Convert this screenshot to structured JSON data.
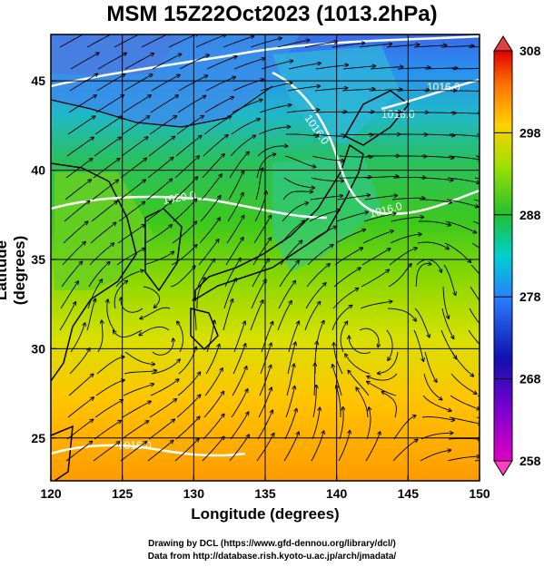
{
  "title": "MSM 15Z22Oct2023 (1013.2hPa)",
  "map": {
    "lon_range": [
      120,
      150
    ],
    "lat_range": [
      22.6,
      47.6
    ],
    "xlabel": "Longitude (degrees)",
    "ylabel": "Latitude  (degrees)",
    "xticks": [
      "120",
      "125",
      "130",
      "135",
      "140",
      "145",
      "150"
    ],
    "yticks": [
      "25",
      "30",
      "35",
      "40",
      "45"
    ],
    "contour_labels": [
      "1016.0",
      "1016.0",
      "1020.0",
      "1016.0",
      "1016.0",
      "1016.0"
    ],
    "grid": true
  },
  "colorbar": {
    "labels": [
      "308",
      "298",
      "288",
      "278",
      "268",
      "258"
    ],
    "colors": [
      "#e60000",
      "#ff7a00",
      "#ffd000",
      "#9be000",
      "#26c000",
      "#00c8c8",
      "#2a70ff",
      "#1010b0",
      "#c000c0"
    ]
  },
  "credits": {
    "line1": "Drawing by DCL (https://www.gfd-dennou.org/library/dcl/)",
    "line2": "Data from http://database.rish.kyoto-u.ac.jp/arch/jmadata/"
  }
}
